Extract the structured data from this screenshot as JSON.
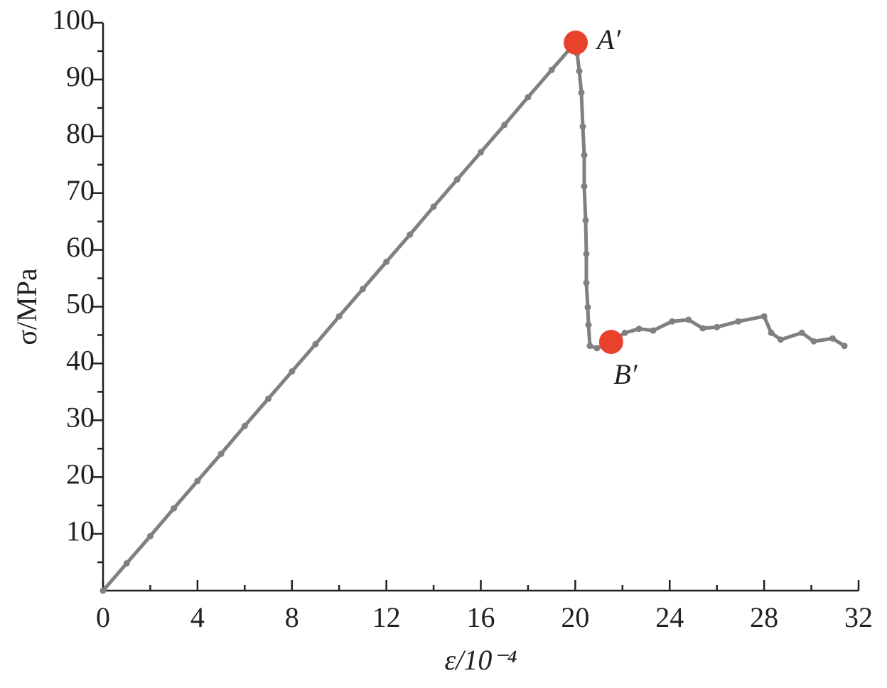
{
  "chart_data": {
    "type": "line",
    "x_label": "ε/10⁻⁴",
    "y_label": "σ/MPa",
    "xlim": [
      0,
      32
    ],
    "xticks": [
      0,
      4,
      8,
      12,
      16,
      20,
      24,
      28,
      32
    ],
    "ylim": [
      0,
      100
    ],
    "yticks": [
      10,
      20,
      30,
      40,
      50,
      60,
      70,
      80,
      90,
      100
    ],
    "series": [
      {
        "color": "#808080",
        "x": [
          0,
          1,
          2,
          3,
          4,
          5,
          6,
          7,
          8,
          9,
          10,
          11,
          12,
          13,
          14,
          15,
          16,
          17,
          18,
          19,
          20,
          20.08,
          20.17,
          20.26,
          20.32,
          20.38,
          20.38,
          20.44,
          20.47,
          20.47,
          20.53,
          20.56,
          20.62,
          20.92,
          21.52,
          22.1,
          22.7,
          23.3,
          24.1,
          24.8,
          25.4,
          26.0,
          26.9,
          28.0,
          28.3,
          28.7,
          29.6,
          30.1,
          30.9,
          31.4
        ],
        "values": [
          0,
          4.8,
          9.6,
          14.5,
          19.3,
          24.1,
          29,
          33.8,
          38.6,
          43.4,
          48.3,
          53.1,
          57.9,
          62.7,
          67.6,
          72.4,
          77.2,
          82,
          86.9,
          91.7,
          96.5,
          94.6,
          91.5,
          87.7,
          81.7,
          76.7,
          71.2,
          65.2,
          59.3,
          54.2,
          49.9,
          46.8,
          43.1,
          42.7,
          43.8,
          45.4,
          46.1,
          45.8,
          47.4,
          47.7,
          46.2,
          46.4,
          47.4,
          48.3,
          45.4,
          44.2,
          45.4,
          43.9,
          44.4,
          43.1
        ]
      }
    ],
    "annotations": [
      {
        "label": "A′",
        "x": 20.02,
        "y": 96.5,
        "color": "#e8412c"
      },
      {
        "label": "B′",
        "x": 21.52,
        "y": 43.8,
        "color": "#e8412c"
      }
    ]
  }
}
